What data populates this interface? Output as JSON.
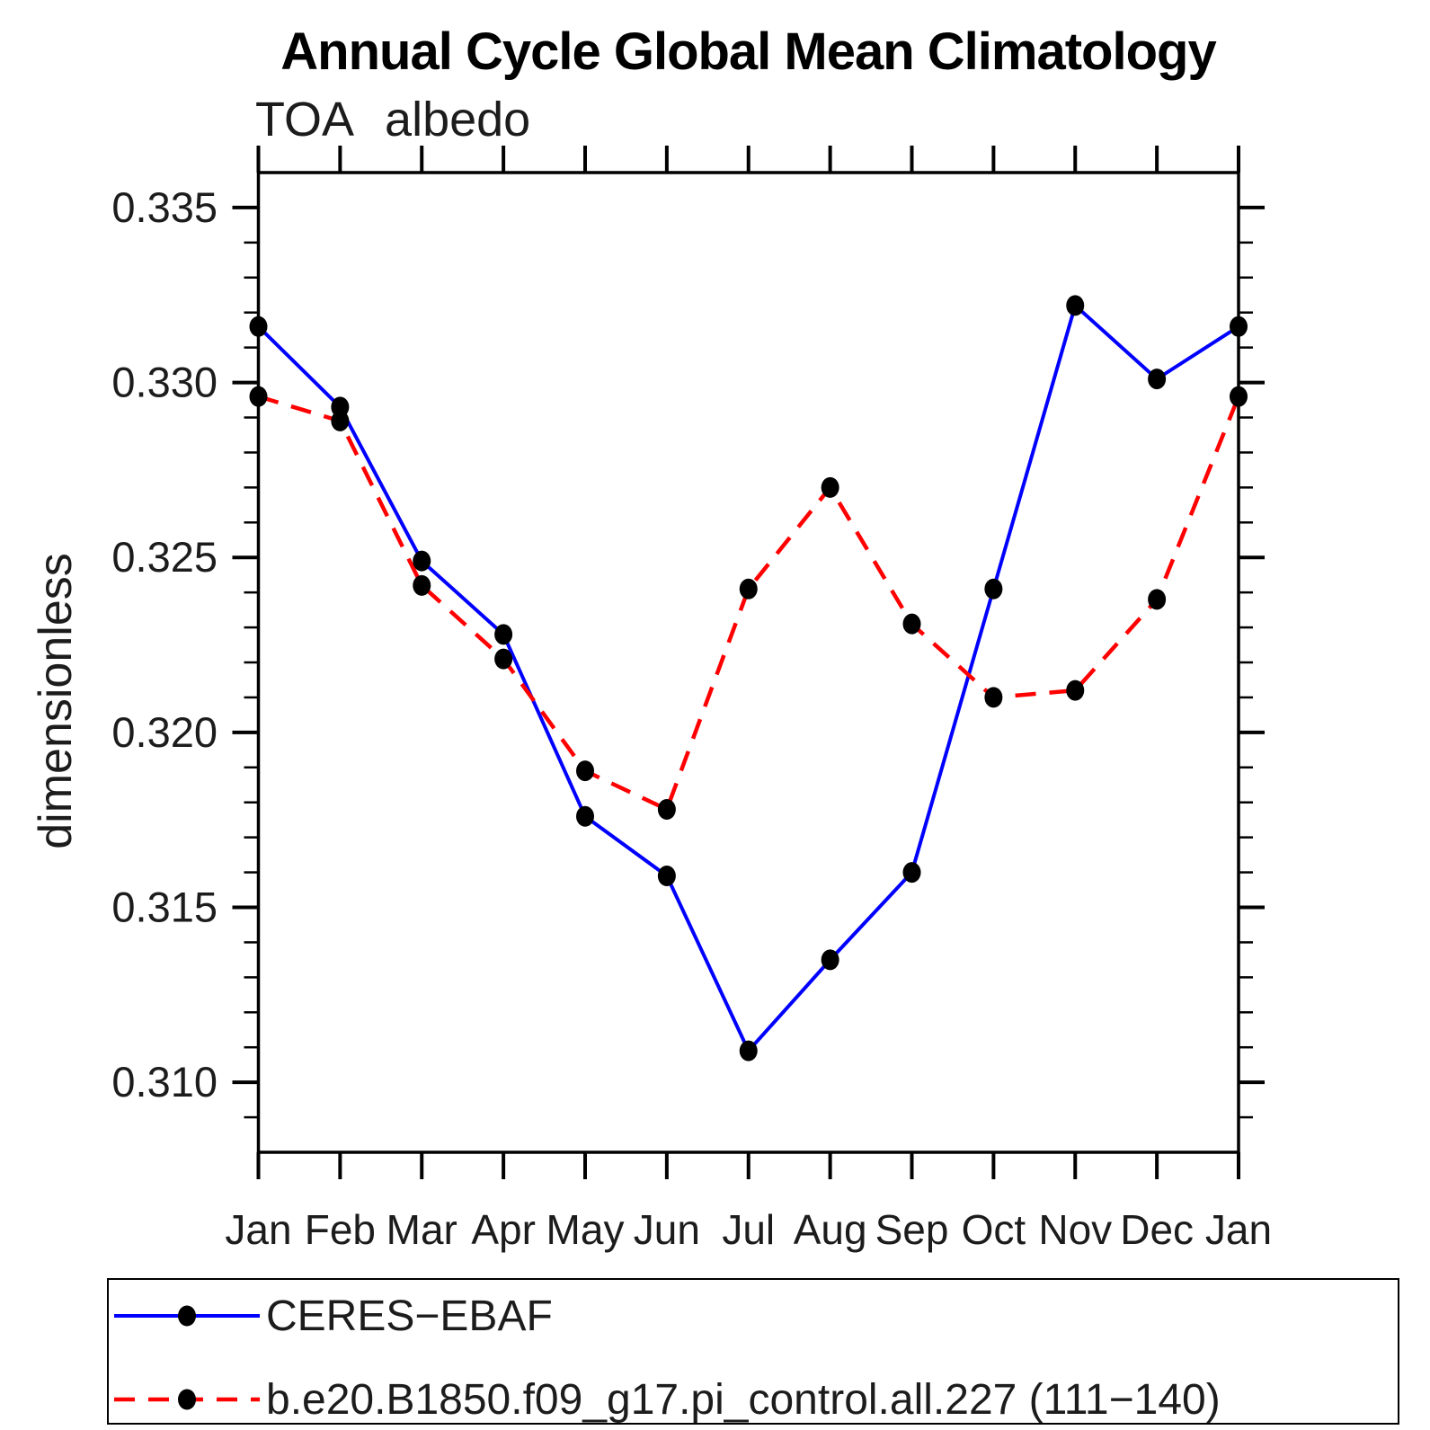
{
  "chart_data": {
    "type": "line",
    "title": "Annual Cycle Global Mean Climatology",
    "subtitle": "TOA albedo",
    "xlabel": "",
    "ylabel": "dimensionless",
    "categories": [
      "Jan",
      "Feb",
      "Mar",
      "Apr",
      "May",
      "Jun",
      "Jul",
      "Aug",
      "Sep",
      "Oct",
      "Nov",
      "Dec",
      "Jan"
    ],
    "series": [
      {
        "name": "CERES−EBAF",
        "color": "#0000ff",
        "line_style": "solid",
        "marker": "filled-circle",
        "marker_color": "#000000",
        "values": [
          0.3316,
          0.3293,
          0.3249,
          0.3228,
          0.3176,
          0.3159,
          0.3109,
          0.3135,
          0.316,
          0.3241,
          0.3322,
          0.3301,
          0.3316
        ]
      },
      {
        "name": "b.e20.B1850.f09_g17.pi_control.all.227 (111−140)",
        "color": "#ff0000",
        "line_style": "dashed",
        "marker": "filled-circle",
        "marker_color": "#000000",
        "values": [
          0.3296,
          0.3289,
          0.3242,
          0.3221,
          0.3189,
          0.3178,
          0.3241,
          0.327,
          0.3231,
          0.321,
          0.3212,
          0.3238,
          0.3296
        ]
      }
    ],
    "ylim": [
      0.308,
      0.336
    ],
    "yticks_major": [
      0.31,
      0.315,
      0.32,
      0.325,
      0.33,
      0.335
    ],
    "ytick_labels": [
      "0.310",
      "0.315",
      "0.320",
      "0.325",
      "0.330",
      "0.335"
    ],
    "y_minor_step": 0.001,
    "grid": false,
    "legend_position": "bottom-left-box",
    "tick_direction": "out"
  }
}
